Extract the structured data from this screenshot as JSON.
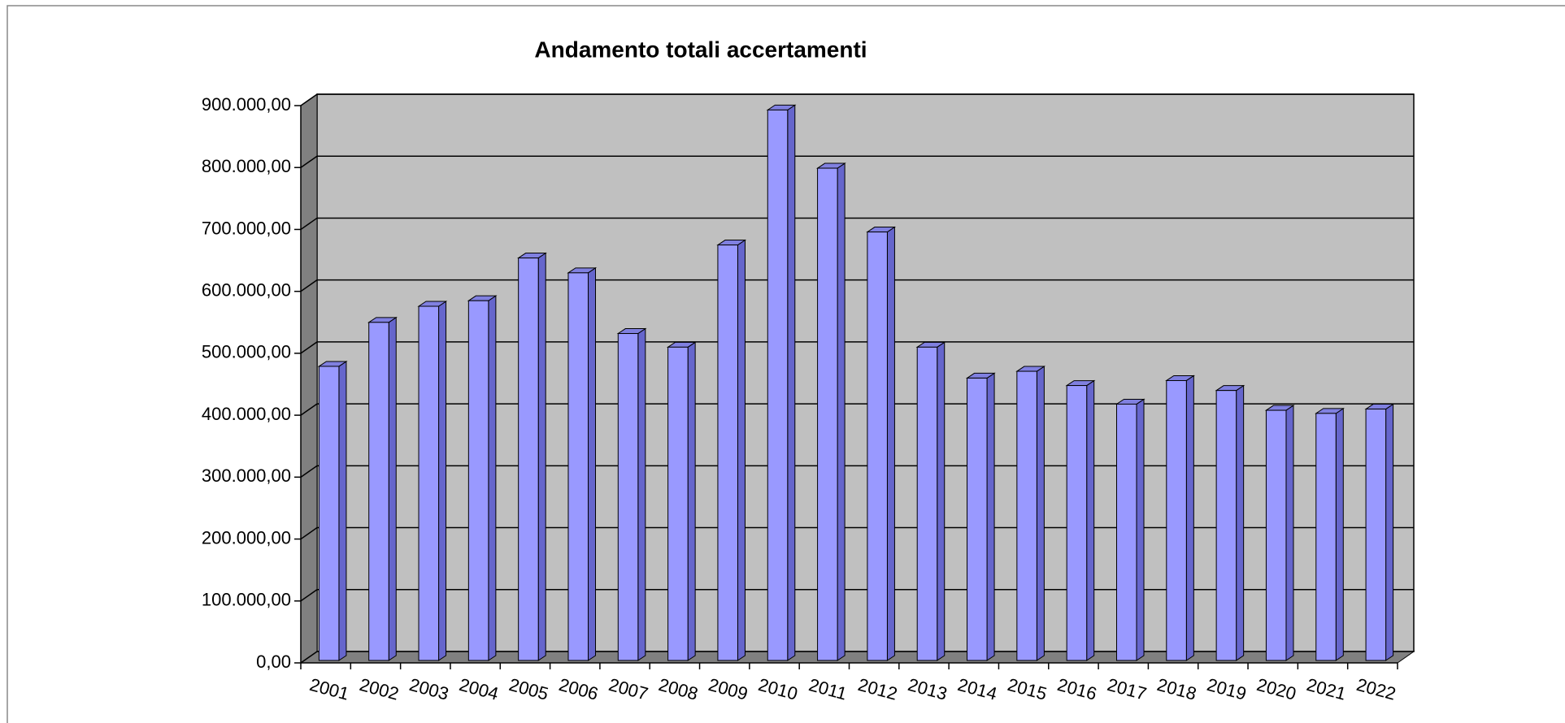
{
  "chart_data": {
    "type": "bar",
    "title": "Andamento totali accertamenti",
    "categories": [
      "2001",
      "2002",
      "2003",
      "2004",
      "2005",
      "2006",
      "2007",
      "2008",
      "2009",
      "2010",
      "2011",
      "2012",
      "2013",
      "2014",
      "2015",
      "2016",
      "2017",
      "2018",
      "2019",
      "2020",
      "2021",
      "2022"
    ],
    "values": [
      475000,
      546000,
      572000,
      581000,
      650000,
      626000,
      528000,
      506000,
      671000,
      889000,
      795000,
      692000,
      506000,
      456000,
      467000,
      444000,
      414000,
      452000,
      436000,
      404000,
      399000,
      406000
    ],
    "color": "#9999ff",
    "ylim": [
      0,
      900000
    ],
    "yticks": [
      {
        "value": 0,
        "label": "0,00"
      },
      {
        "value": 100000,
        "label": "100.000,00"
      },
      {
        "value": 200000,
        "label": "200.000,00"
      },
      {
        "value": 300000,
        "label": "300.000,00"
      },
      {
        "value": 400000,
        "label": "400.000,00"
      },
      {
        "value": 500000,
        "label": "500.000,00"
      },
      {
        "value": 600000,
        "label": "600.000,00"
      },
      {
        "value": 700000,
        "label": "700.000,00"
      },
      {
        "value": 800000,
        "label": "800.000,00"
      },
      {
        "value": 900000,
        "label": "900.000,00"
      }
    ],
    "grid": true
  }
}
